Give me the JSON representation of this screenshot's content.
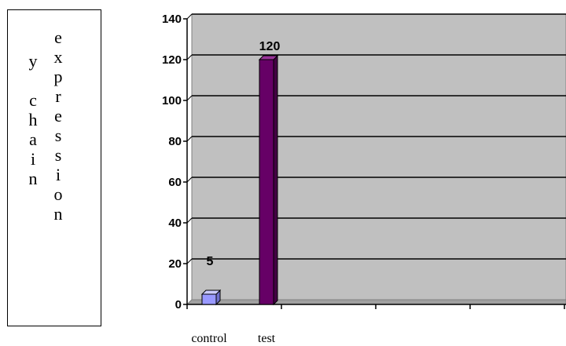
{
  "ylabel_columns": [
    [
      "y",
      "",
      "c",
      "h",
      "a",
      "i",
      "n"
    ],
    [
      "e",
      "x",
      "p",
      "r",
      "e",
      "s",
      "s",
      "i",
      "o",
      "n"
    ]
  ],
  "colors": {
    "plot_bg": "#c0c0c0",
    "grid": "#000000",
    "control_bar": "#9999ff",
    "test_bar": "#660066"
  },
  "chart_data": {
    "type": "bar",
    "categories": [
      "control",
      "test"
    ],
    "values": [
      5,
      120
    ],
    "data_labels": [
      "5",
      "120"
    ],
    "ylim": [
      0,
      140
    ],
    "yticks": [
      "0",
      "20",
      "40",
      "60",
      "80",
      "100",
      "120",
      "140"
    ],
    "grid": true,
    "title": "",
    "xlabel": "",
    "ylabel": "y chain expression"
  }
}
